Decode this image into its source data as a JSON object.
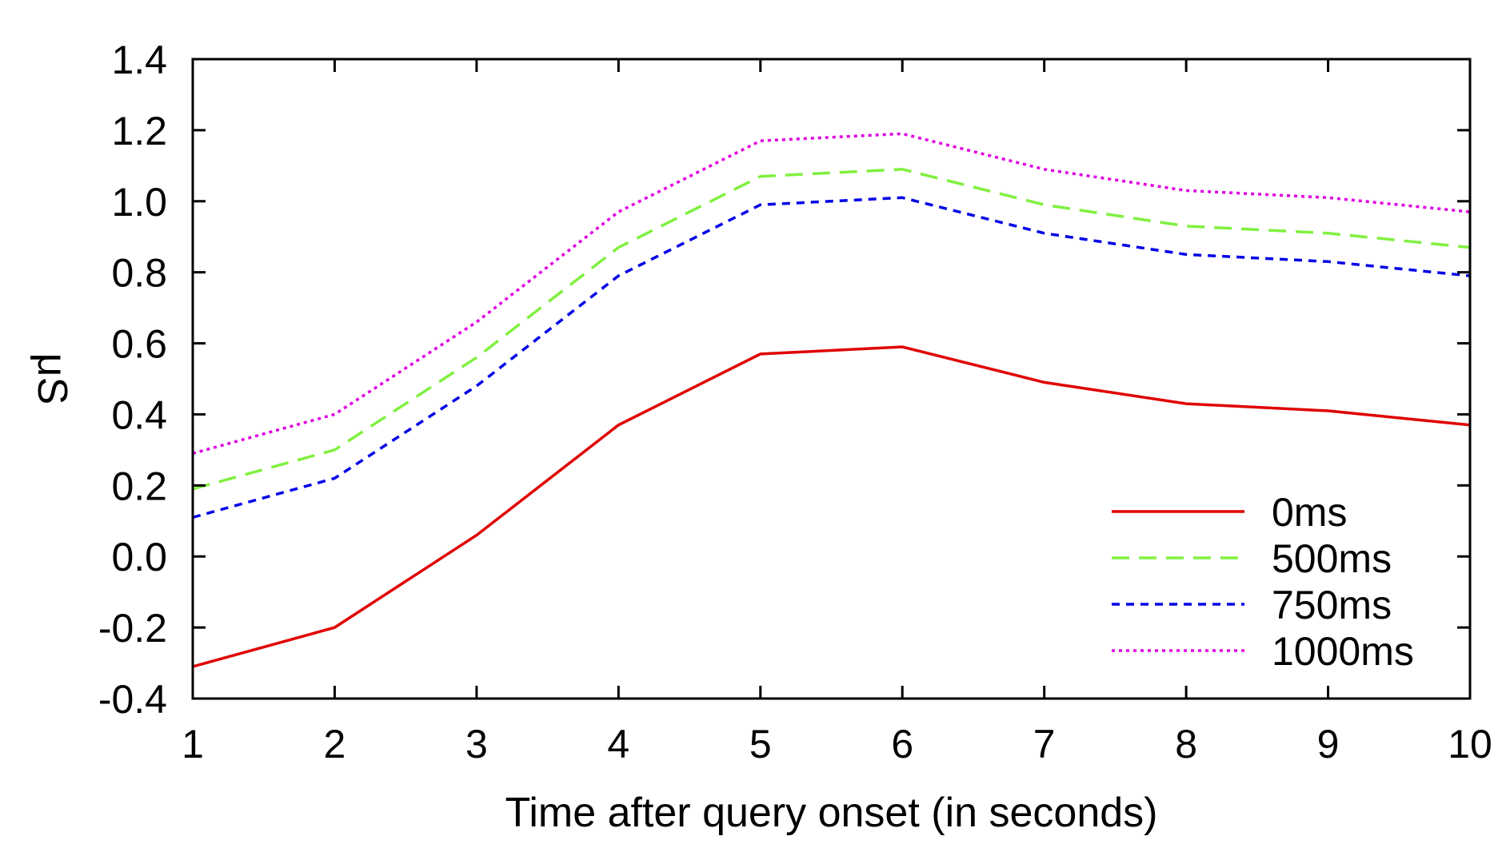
{
  "chart_data": {
    "type": "line",
    "title": "",
    "xlabel": "Time after query onset (in seconds)",
    "ylabel": "μS",
    "x": [
      1,
      2,
      3,
      4,
      5,
      6,
      7,
      8,
      9,
      10
    ],
    "xlim": [
      1,
      10
    ],
    "ylim": [
      -0.4,
      1.4
    ],
    "xticks": [
      "1",
      "2",
      "3",
      "4",
      "5",
      "6",
      "7",
      "8",
      "9",
      "10"
    ],
    "yticks": [
      "-0.4",
      "-0.2",
      "0.0",
      "0.2",
      "0.4",
      "0.6",
      "0.8",
      "1.0",
      "1.2",
      "1.4"
    ],
    "grid": false,
    "legend_position": "bottom-right",
    "series": [
      {
        "name": "0ms",
        "color": "#e00000",
        "dash": "solid",
        "values": [
          -0.31,
          -0.2,
          0.06,
          0.37,
          0.57,
          0.59,
          0.49,
          0.43,
          0.41,
          0.37
        ]
      },
      {
        "name": "500ms",
        "color": "#80f040",
        "dash": "dashed",
        "values": [
          0.19,
          0.3,
          0.56,
          0.87,
          1.07,
          1.09,
          0.99,
          0.93,
          0.91,
          0.87
        ]
      },
      {
        "name": "750ms",
        "color": "#0000e8",
        "dash": "short-dashed",
        "values": [
          0.11,
          0.22,
          0.48,
          0.79,
          0.99,
          1.01,
          0.91,
          0.85,
          0.83,
          0.79
        ]
      },
      {
        "name": "1000ms",
        "color": "#e000e0",
        "dash": "dotted",
        "values": [
          0.29,
          0.4,
          0.66,
          0.97,
          1.17,
          1.19,
          1.09,
          1.03,
          1.01,
          0.97
        ]
      }
    ]
  }
}
